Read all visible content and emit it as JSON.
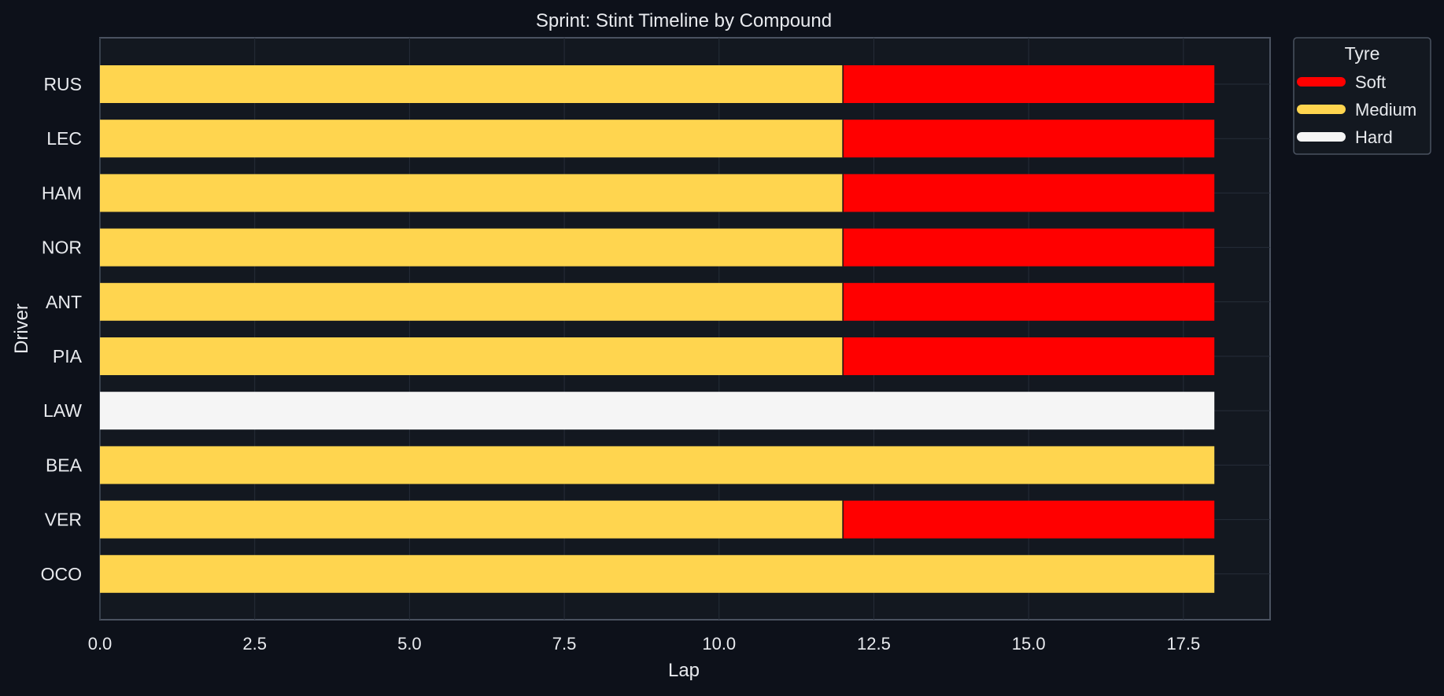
{
  "chart_data": {
    "type": "bar",
    "orientation": "horizontal-stacked",
    "title": "Sprint: Stint Timeline by Compound",
    "xlabel": "Lap",
    "ylabel": "Driver",
    "xlim": [
      0,
      18.9
    ],
    "xticks": [
      "0.0",
      "2.5",
      "5.0",
      "7.5",
      "10.0",
      "12.5",
      "15.0",
      "17.5"
    ],
    "xtick_values": [
      0,
      2.5,
      5,
      7.5,
      10,
      12.5,
      15,
      17.5
    ],
    "grid": true,
    "legend": {
      "title": "Tyre",
      "placement": "outside top-right",
      "entries": [
        {
          "label": "Soft",
          "color": "#ff0000"
        },
        {
          "label": "Medium",
          "color": "#ffd54f"
        },
        {
          "label": "Hard",
          "color": "#f5f5f5"
        }
      ]
    },
    "compound_colors": {
      "Soft": "#ff0000",
      "Medium": "#ffd54f",
      "Hard": "#f5f5f5"
    },
    "drivers": [
      {
        "driver": "RUS",
        "stints": [
          {
            "compound": "Medium",
            "start": 0,
            "end": 12
          },
          {
            "compound": "Soft",
            "start": 12,
            "end": 18
          }
        ]
      },
      {
        "driver": "LEC",
        "stints": [
          {
            "compound": "Medium",
            "start": 0,
            "end": 12
          },
          {
            "compound": "Soft",
            "start": 12,
            "end": 18
          }
        ]
      },
      {
        "driver": "HAM",
        "stints": [
          {
            "compound": "Medium",
            "start": 0,
            "end": 12
          },
          {
            "compound": "Soft",
            "start": 12,
            "end": 18
          }
        ]
      },
      {
        "driver": "NOR",
        "stints": [
          {
            "compound": "Medium",
            "start": 0,
            "end": 12
          },
          {
            "compound": "Soft",
            "start": 12,
            "end": 18
          }
        ]
      },
      {
        "driver": "ANT",
        "stints": [
          {
            "compound": "Medium",
            "start": 0,
            "end": 12
          },
          {
            "compound": "Soft",
            "start": 12,
            "end": 18
          }
        ]
      },
      {
        "driver": "PIA",
        "stints": [
          {
            "compound": "Medium",
            "start": 0,
            "end": 12
          },
          {
            "compound": "Soft",
            "start": 12,
            "end": 18
          }
        ]
      },
      {
        "driver": "LAW",
        "stints": [
          {
            "compound": "Hard",
            "start": 0,
            "end": 18
          }
        ]
      },
      {
        "driver": "BEA",
        "stints": [
          {
            "compound": "Medium",
            "start": 0,
            "end": 18
          }
        ]
      },
      {
        "driver": "VER",
        "stints": [
          {
            "compound": "Medium",
            "start": 0,
            "end": 12
          },
          {
            "compound": "Soft",
            "start": 12,
            "end": 18
          }
        ]
      },
      {
        "driver": "OCO",
        "stints": [
          {
            "compound": "Medium",
            "start": 0,
            "end": 18
          }
        ]
      }
    ]
  }
}
